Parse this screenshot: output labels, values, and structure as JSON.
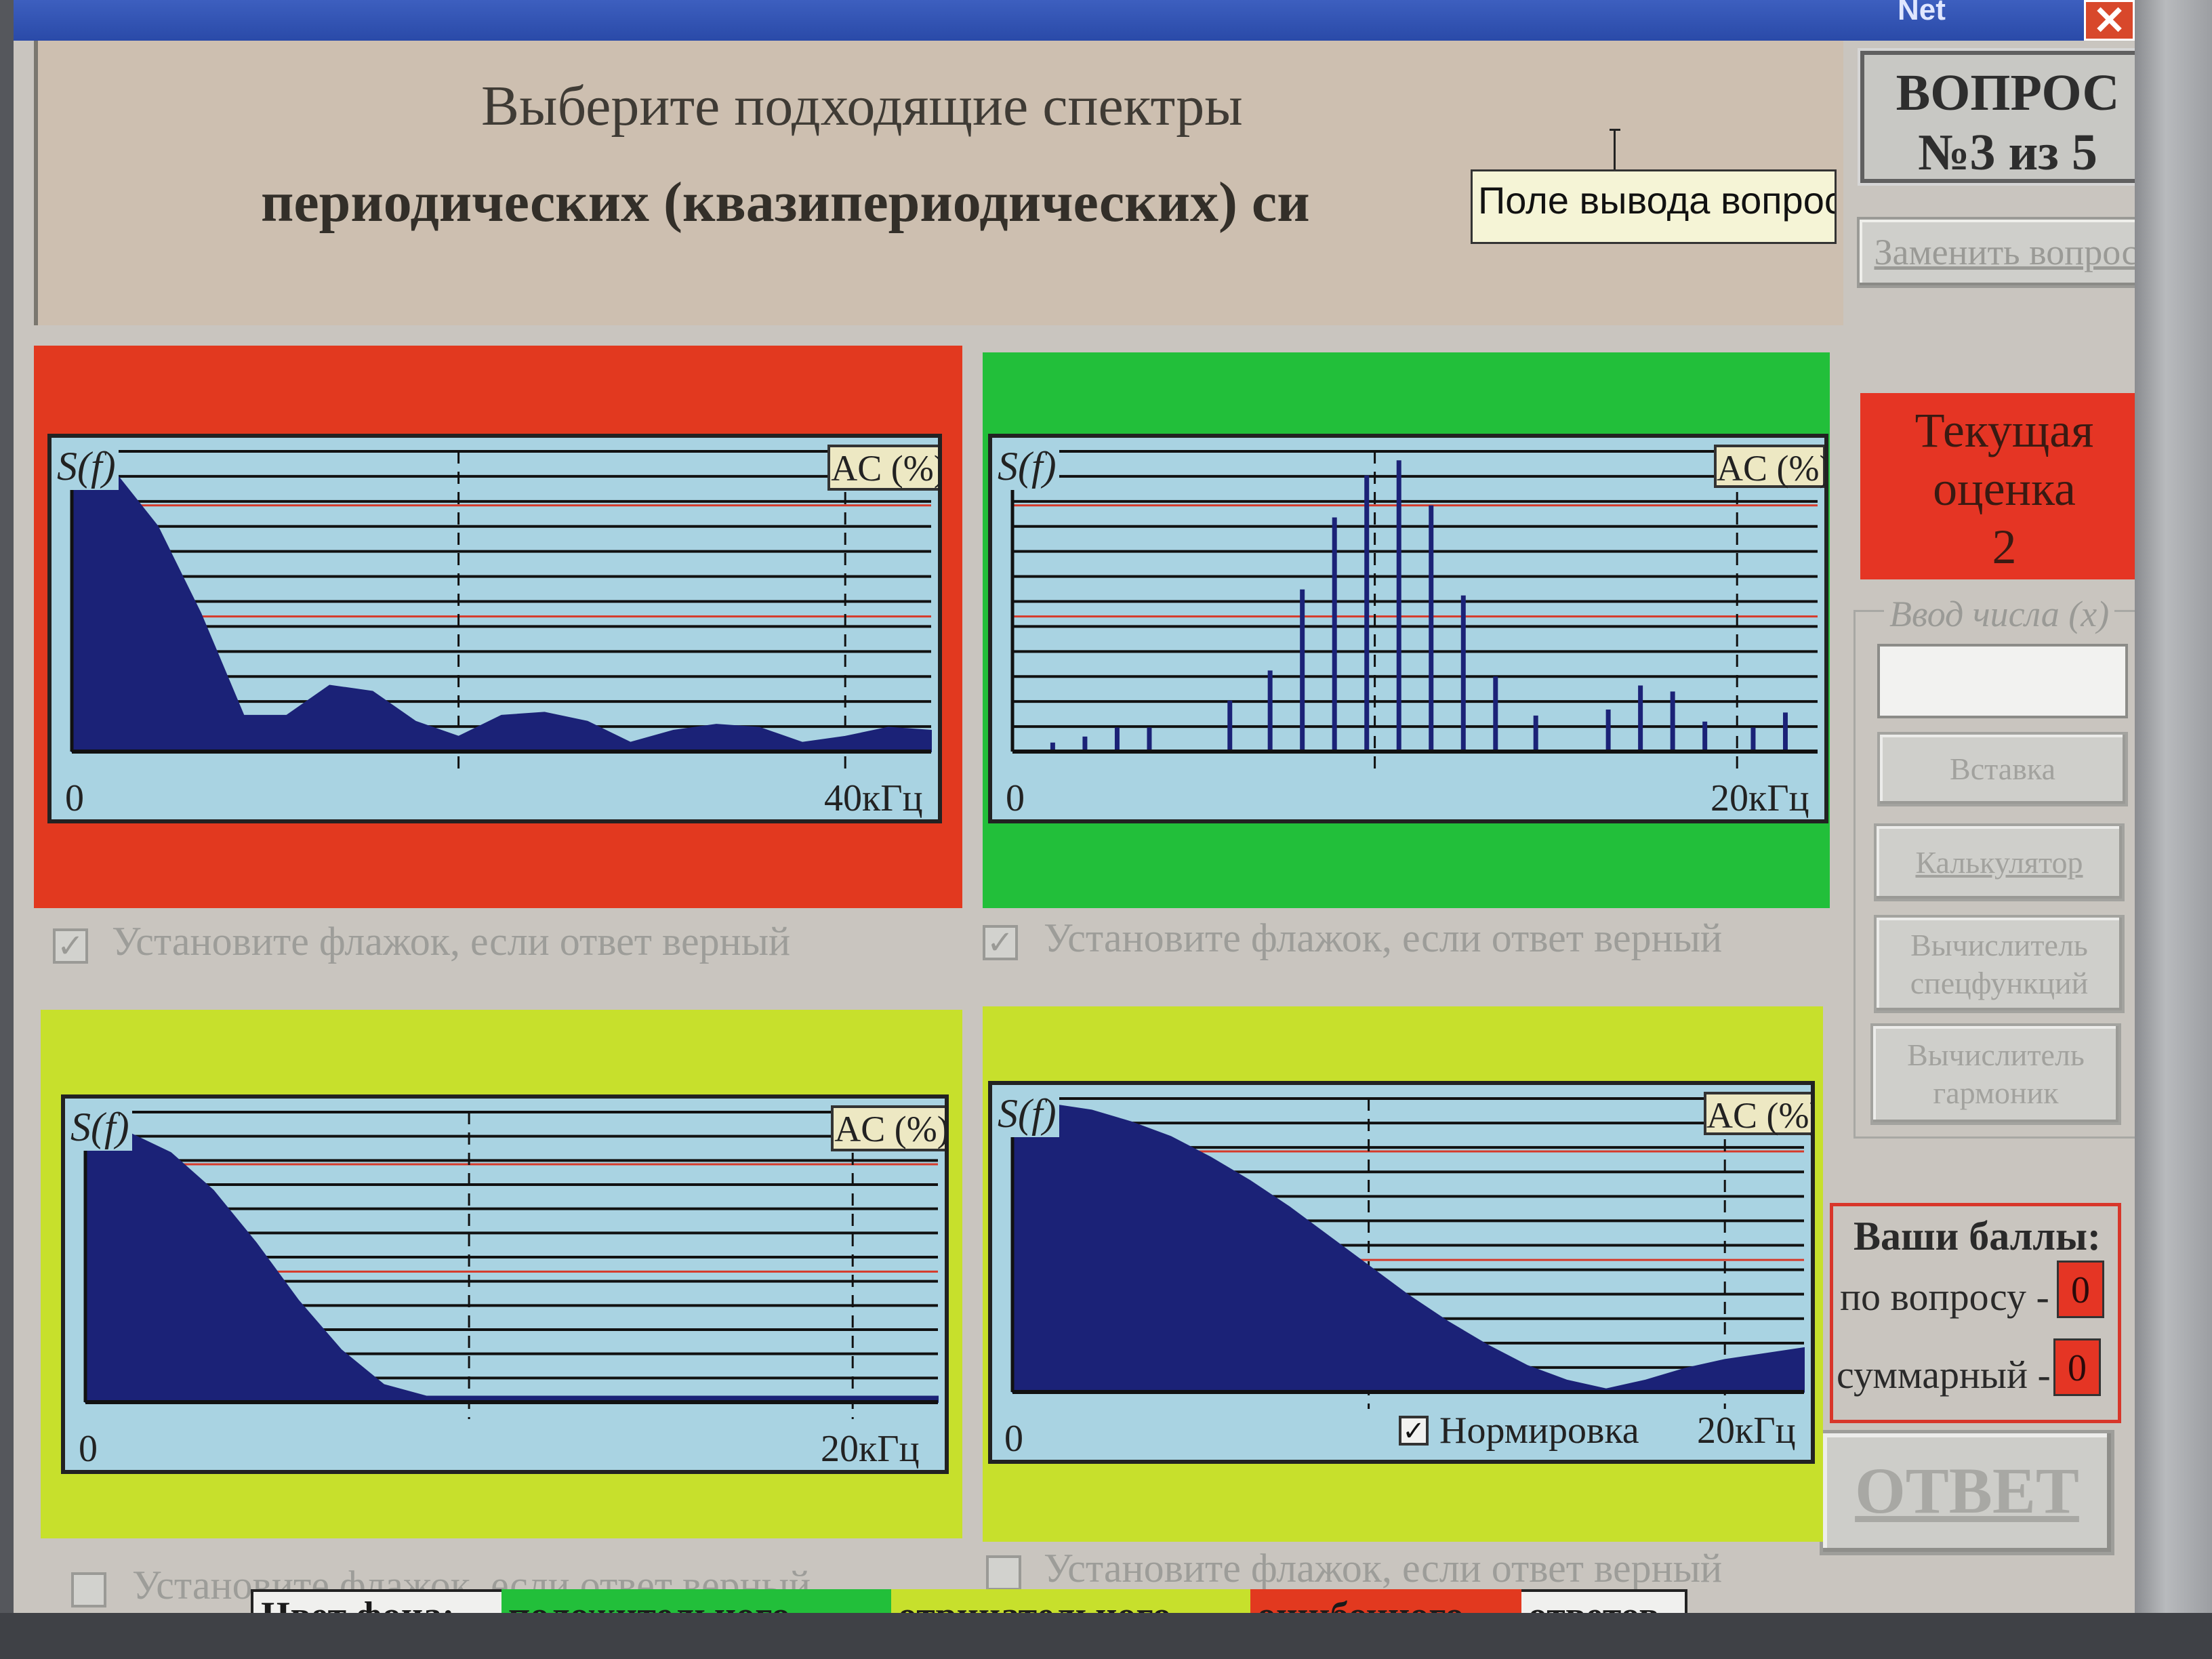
{
  "window": {
    "title": "Net",
    "close_label": "✕"
  },
  "question": {
    "line1": "Выберите подходящие спектры",
    "line2": "периодических (квазипериодических) си",
    "tooltip": "Поле вывода вопроса"
  },
  "sidebar": {
    "question_number": {
      "line1": "ВОПРОС",
      "line2": "№3 из 5"
    },
    "replace_button": "Заменить вопрос",
    "grade": {
      "line1": "Текущая",
      "line2": "оценка",
      "value": "2"
    },
    "input_legend": "Ввод числа (x)",
    "input_value": "",
    "buttons": {
      "insert": "Вставка",
      "calculator": "Калькулятор",
      "special": "Вычислитель спецфункций",
      "harmonics": "Вычислитель гармоник"
    },
    "score": {
      "title": "Ваши баллы:",
      "question_label": "по вопросу -",
      "question_value": "0",
      "total_label": "суммарный -",
      "total_value": "0"
    },
    "answer_button": "ОТВЕТ"
  },
  "panels": [
    {
      "bg": "#e2391f",
      "y_label": "S(f)",
      "ac_label": "AC (%)",
      "x_start": "0",
      "x_end": "40кГц",
      "checked": true,
      "checkbox_label": "Установите флажок, если ответ верный"
    },
    {
      "bg": "#22bf3a",
      "y_label": "S(f)",
      "ac_label": "AC (%)",
      "x_start": "0",
      "x_end": "20кГц",
      "checked": true,
      "checkbox_label": "Установите флажок, если ответ верный"
    },
    {
      "bg": "#c7e02c",
      "y_label": "S(f)",
      "ac_label": "AC (%)",
      "x_start": "0",
      "x_end": "20кГц",
      "checked": false,
      "checkbox_label": "Установите флажок, если ответ верный"
    },
    {
      "bg": "#c7e02c",
      "y_label": "S(f)",
      "ac_label": "AC (%)",
      "x_start": "0",
      "x_end": "20кГц",
      "checked": false,
      "checkbox_label": "Установите флажок, если ответ верный",
      "normalization_label": "Нормировка",
      "normalization_checked": true
    }
  ],
  "legend": {
    "prefix": "Цвет фона:",
    "positive": "положительного,",
    "negative": "отрицательного,",
    "error": "ошибочного",
    "suffix": "ответов",
    "colors": {
      "positive": "#22bf3a",
      "negative": "#c7e02c",
      "error": "#e2391f"
    }
  },
  "chart_data": [
    {
      "type": "area",
      "description_axis": "S(f)",
      "x_range_labels": [
        "0",
        "40кГц"
      ],
      "shape": "sinc-magnitude",
      "x": [
        0,
        0.05,
        0.1,
        0.15,
        0.2,
        0.25,
        0.3,
        0.35,
        0.4,
        0.45,
        0.5,
        0.55,
        0.6,
        0.65,
        0.7,
        0.75,
        0.8,
        0.85,
        0.9,
        0.95,
        1.0
      ],
      "y": [
        0.98,
        0.93,
        0.75,
        0.46,
        0.12,
        0.12,
        0.22,
        0.2,
        0.1,
        0.05,
        0.12,
        0.13,
        0.1,
        0.03,
        0.07,
        0.09,
        0.08,
        0.03,
        0.05,
        0.08,
        0.07
      ]
    },
    {
      "type": "bar",
      "description_axis": "S(f)",
      "x_range_labels": [
        "0",
        "20кГц"
      ],
      "shape": "line-spectrum",
      "x": [
        0.05,
        0.09,
        0.13,
        0.17,
        0.27,
        0.32,
        0.36,
        0.4,
        0.44,
        0.48,
        0.52,
        0.56,
        0.6,
        0.65,
        0.74,
        0.78,
        0.82,
        0.86,
        0.92,
        0.96
      ],
      "y": [
        0.03,
        0.05,
        0.08,
        0.08,
        0.17,
        0.27,
        0.54,
        0.78,
        0.92,
        0.97,
        0.82,
        0.52,
        0.25,
        0.12,
        0.14,
        0.22,
        0.2,
        0.1,
        0.08,
        0.13
      ]
    },
    {
      "type": "area",
      "description_axis": "S(f)",
      "x_range_labels": [
        "0",
        "20кГц"
      ],
      "shape": "decaying-lobe",
      "x": [
        0,
        0.05,
        0.1,
        0.15,
        0.2,
        0.25,
        0.3,
        0.35,
        0.4,
        0.45,
        0.5,
        0.55,
        0.6,
        0.65,
        0.7,
        0.75,
        0.8,
        0.85,
        0.9,
        0.95,
        1.0
      ],
      "y": [
        0.96,
        0.93,
        0.86,
        0.73,
        0.55,
        0.35,
        0.18,
        0.06,
        0.02,
        0.02,
        0.02,
        0.02,
        0.02,
        0.02,
        0.02,
        0.02,
        0.02,
        0.02,
        0.02,
        0.02,
        0.02
      ]
    },
    {
      "type": "area",
      "description_axis": "S(f)",
      "x_range_labels": [
        "0",
        "20кГц"
      ],
      "shape": "wide-lobe",
      "x": [
        0,
        0.05,
        0.1,
        0.15,
        0.2,
        0.25,
        0.3,
        0.35,
        0.4,
        0.45,
        0.5,
        0.55,
        0.6,
        0.65,
        0.7,
        0.75,
        0.8,
        0.85,
        0.9,
        0.95,
        1.0
      ],
      "y": [
        0.98,
        0.98,
        0.96,
        0.92,
        0.87,
        0.8,
        0.72,
        0.63,
        0.53,
        0.43,
        0.33,
        0.24,
        0.16,
        0.09,
        0.04,
        0.01,
        0.04,
        0.08,
        0.11,
        0.13,
        0.15
      ]
    }
  ]
}
